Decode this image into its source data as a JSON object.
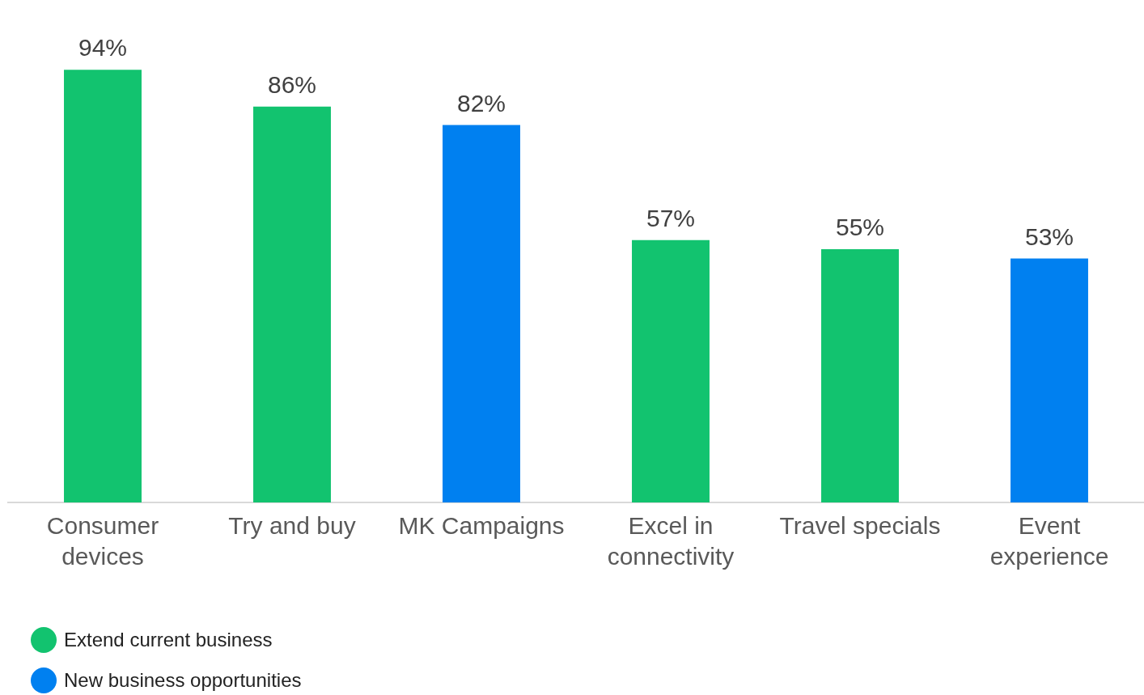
{
  "chart_data": {
    "type": "bar",
    "categories": [
      "Consumer devices",
      "Try and buy",
      "MK Campaigns",
      "Excel in connectivity",
      "Travel specials",
      "Event experience"
    ],
    "stacked": true,
    "series": [
      {
        "name": "Extend current business",
        "color": "#12c36f",
        "values": [
          94,
          86,
          null,
          57,
          55,
          null
        ],
        "value_labels": [
          "94%",
          "86%",
          null,
          "57%",
          "55%",
          null
        ]
      },
      {
        "name": "New business opportunities",
        "color": "#0080f0",
        "values": [
          null,
          null,
          82,
          null,
          null,
          53
        ],
        "value_labels": [
          null,
          null,
          "82%",
          null,
          null,
          "53%"
        ]
      }
    ],
    "tick_labels": "x",
    "legend": "bottom left"
  }
}
